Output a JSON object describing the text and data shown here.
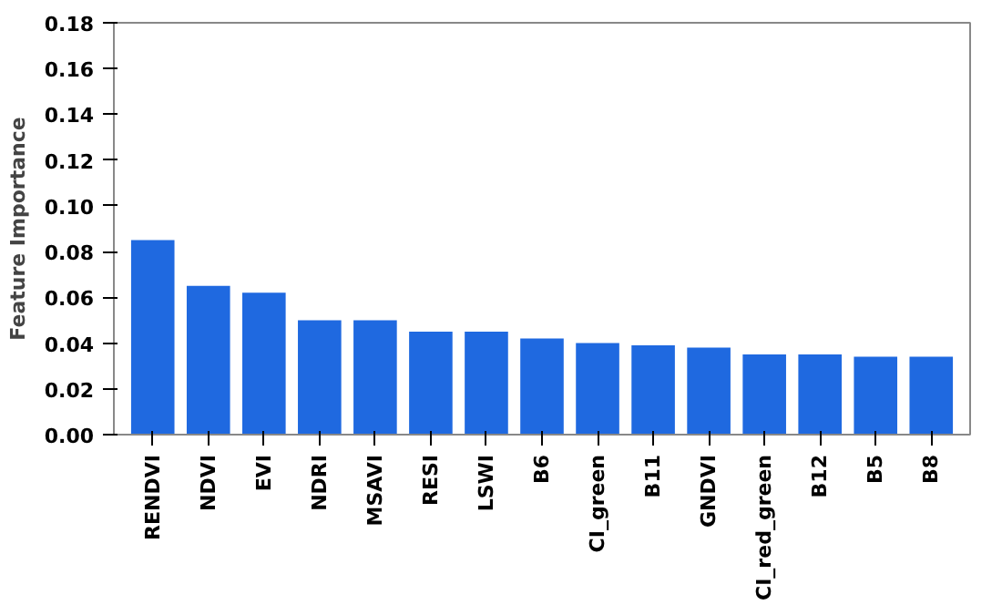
{
  "chart_data": {
    "type": "bar",
    "ylabel": "Feature Importance",
    "categories": [
      "RENDVI",
      "NDVI",
      "EVI",
      "NDRI",
      "MSAVI",
      "RESI",
      "LSWI",
      "B6",
      "CI_green",
      "B11",
      "GNDVI",
      "CI_red_green",
      "B12",
      "B5",
      "B8"
    ],
    "values": [
      0.085,
      0.065,
      0.062,
      0.05,
      0.05,
      0.045,
      0.045,
      0.042,
      0.04,
      0.039,
      0.038,
      0.035,
      0.035,
      0.034,
      0.034
    ],
    "color": "#1f69e0",
    "ylim": [
      0,
      0.18
    ],
    "yticks": [
      {
        "value": 0,
        "label": "0.00"
      },
      {
        "value": 0.02,
        "label": "0.02"
      },
      {
        "value": 0.04,
        "label": "0.04"
      },
      {
        "value": 0.06,
        "label": "0.06"
      },
      {
        "value": 0.08,
        "label": "0.08"
      },
      {
        "value": 0.1,
        "label": "0.10"
      },
      {
        "value": 0.12,
        "label": "0.12"
      },
      {
        "value": 0.14,
        "label": "0.14"
      },
      {
        "value": 0.16,
        "label": "0.16"
      },
      {
        "value": 0.18,
        "label": "0.18"
      }
    ],
    "grid": false
  }
}
